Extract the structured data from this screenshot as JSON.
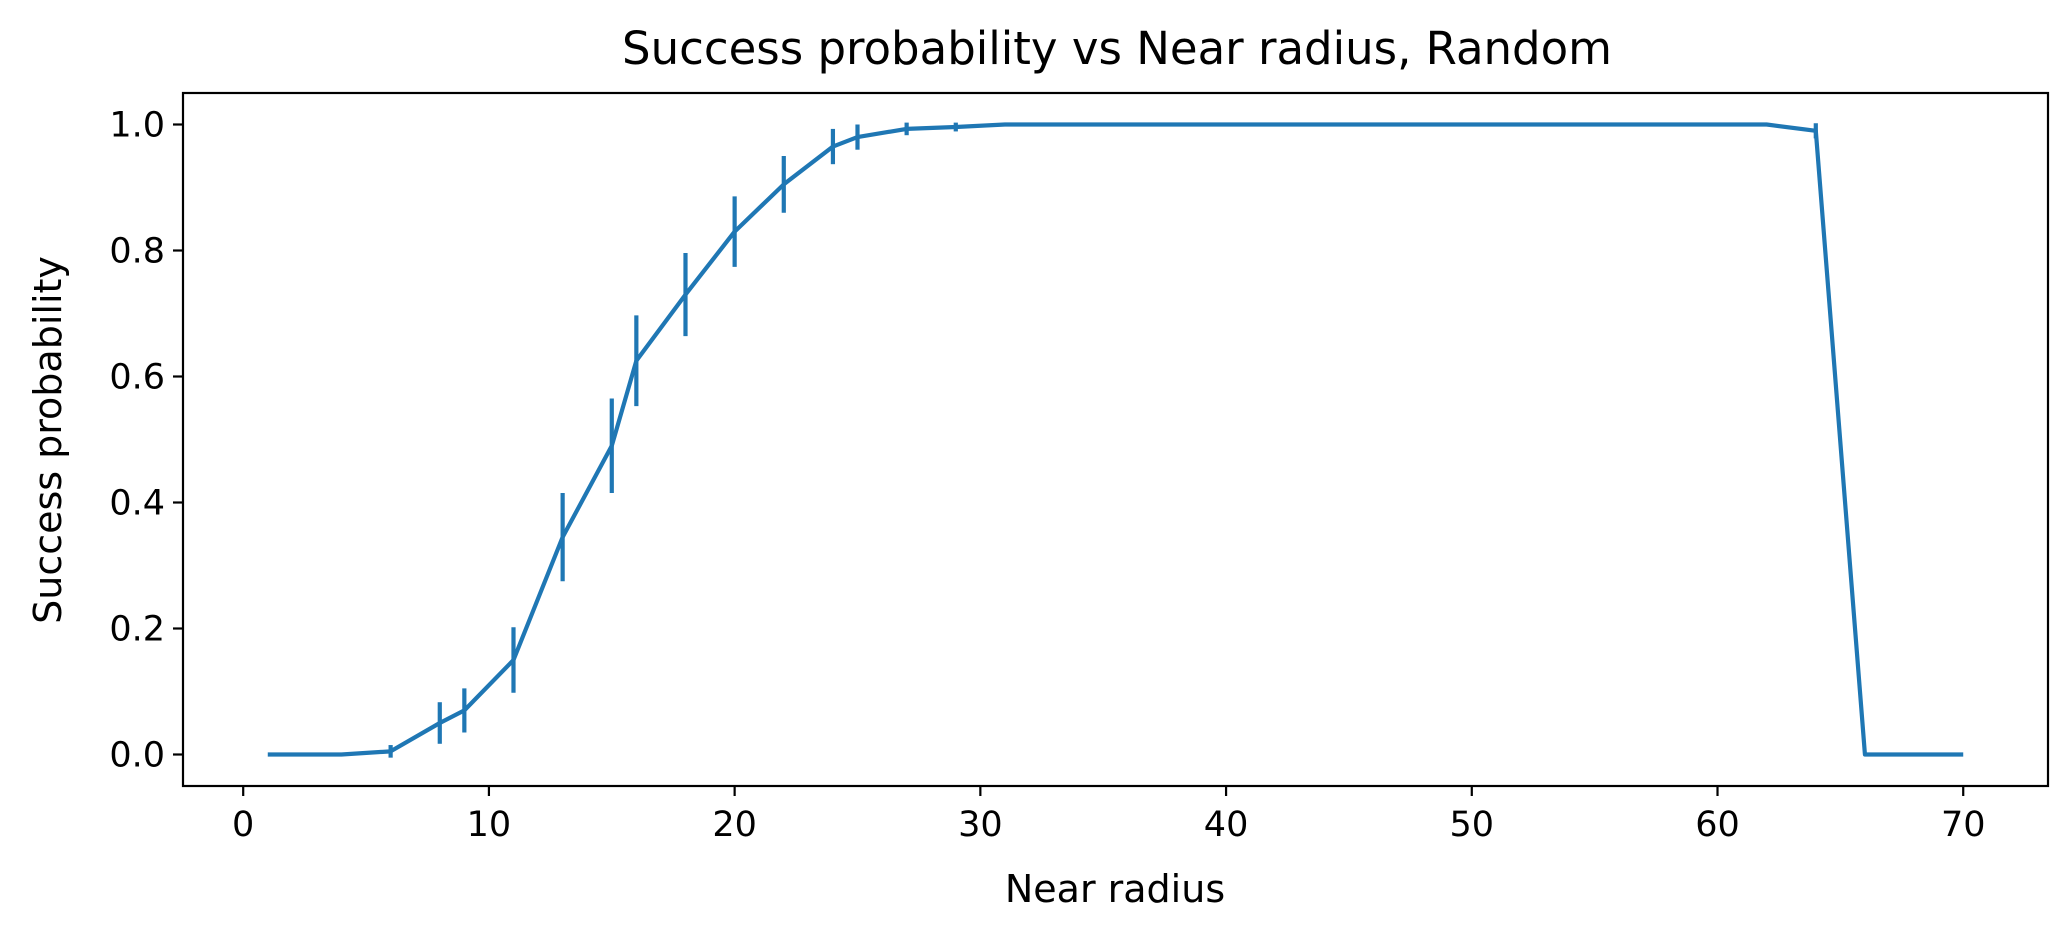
{
  "chart_data": {
    "type": "line",
    "title": "Success probability vs Near radius, Random",
    "xlabel": "Near radius",
    "ylabel": "Success probability",
    "xlim": [
      -2.45,
      73.45
    ],
    "ylim": [
      -0.05,
      1.05
    ],
    "xticks": [
      0,
      10,
      20,
      30,
      40,
      50,
      60,
      70
    ],
    "xtick_labels": [
      "0",
      "10",
      "20",
      "30",
      "40",
      "50",
      "60",
      "70"
    ],
    "yticks": [
      0.0,
      0.2,
      0.4,
      0.6,
      0.8,
      1.0
    ],
    "ytick_labels": [
      "0.0",
      "0.2",
      "0.4",
      "0.6",
      "0.8",
      "1.0"
    ],
    "grid": false,
    "color": "#1f77b4",
    "series": [
      {
        "x": [
          1,
          4,
          6,
          8,
          9,
          11,
          13,
          15,
          16,
          18,
          20,
          22,
          24,
          25,
          27,
          29,
          31,
          62,
          64,
          66,
          70
        ],
        "y": [
          0.0,
          0.0,
          0.005,
          0.05,
          0.07,
          0.15,
          0.345,
          0.49,
          0.625,
          0.73,
          0.83,
          0.905,
          0.965,
          0.98,
          0.993,
          0.996,
          1.0,
          1.0,
          0.99,
          0.0,
          0.0
        ],
        "yerr": [
          0,
          0,
          0.01,
          0.033,
          0.035,
          0.052,
          0.07,
          0.075,
          0.072,
          0.066,
          0.056,
          0.045,
          0.028,
          0.02,
          0.01,
          0.007,
          0,
          0,
          0.012,
          0,
          0
        ]
      }
    ]
  }
}
